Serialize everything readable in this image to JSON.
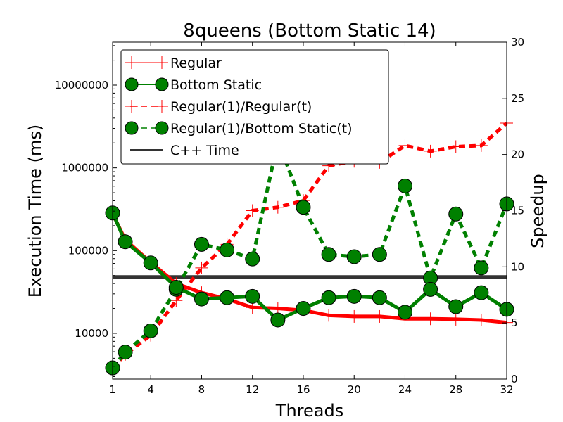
{
  "chart_data": {
    "type": "line",
    "title": "8queens (Bottom Static 14)",
    "xlabel": "Threads",
    "ylabel_left": "Execution Time (ms)",
    "ylabel_right": "Speedup",
    "x_ticks": [
      1,
      4,
      8,
      12,
      16,
      20,
      24,
      28,
      32
    ],
    "x_tick_labels": [
      "1",
      "4",
      "8",
      "12",
      "16",
      "20",
      "24",
      "28",
      "32"
    ],
    "xlim": [
      1,
      32
    ],
    "y_left_scale": "log",
    "y_left_lim": [
      2800,
      33000000
    ],
    "y_left_ticks": [
      10000,
      100000,
      1000000,
      10000000
    ],
    "y_left_tick_labels": [
      "10000",
      "100000",
      "1000000",
      "10000000"
    ],
    "y_right_lim": [
      0,
      30
    ],
    "y_right_ticks": [
      0,
      5,
      10,
      15,
      20,
      25,
      30
    ],
    "y_right_tick_labels": [
      "0",
      "5",
      "10",
      "15",
      "20",
      "25",
      "30"
    ],
    "legend_position": "top-left",
    "x": [
      1,
      2,
      4,
      6,
      8,
      10,
      12,
      14,
      16,
      18,
      20,
      22,
      24,
      26,
      28,
      30,
      32
    ],
    "series": [
      {
        "name": "Regular",
        "axis": "left",
        "color": "#ff0000",
        "style": "solid",
        "marker": "plus",
        "values": [
          280000,
          135000,
          72000,
          40000,
          31000,
          26000,
          20500,
          20000,
          19000,
          16500,
          16000,
          16000,
          15000,
          15000,
          14800,
          14500,
          13500
        ]
      },
      {
        "name": "Bottom Static",
        "axis": "left",
        "color": "#008000",
        "style": "solid",
        "marker": "circle",
        "values": [
          285000,
          128000,
          71000,
          36000,
          26000,
          27000,
          28000,
          14500,
          20000,
          27000,
          28000,
          27000,
          18000,
          34000,
          21000,
          31000,
          19500
        ]
      },
      {
        "name": "Regular(1)/Regular(t)",
        "axis": "right",
        "color": "#ff0000",
        "style": "dashed",
        "marker": "plus",
        "values": [
          1.0,
          2.2,
          3.9,
          7.0,
          9.9,
          12.0,
          15.0,
          15.3,
          15.9,
          19.0,
          19.4,
          19.3,
          20.8,
          20.3,
          20.7,
          20.8,
          22.8
        ]
      },
      {
        "name": "Regular(1)/Bottom Static(t)",
        "axis": "right",
        "color": "#008000",
        "style": "dashed",
        "marker": "circle",
        "values": [
          1.0,
          2.4,
          4.3,
          8.0,
          12.0,
          11.5,
          10.7,
          21.2,
          15.3,
          11.1,
          10.9,
          11.1,
          17.2,
          9.0,
          14.7,
          9.9,
          15.6
        ]
      },
      {
        "name": "C++ Time",
        "axis": "left",
        "color": "#333333",
        "style": "solid",
        "marker": "none",
        "constant": 48000
      }
    ]
  }
}
